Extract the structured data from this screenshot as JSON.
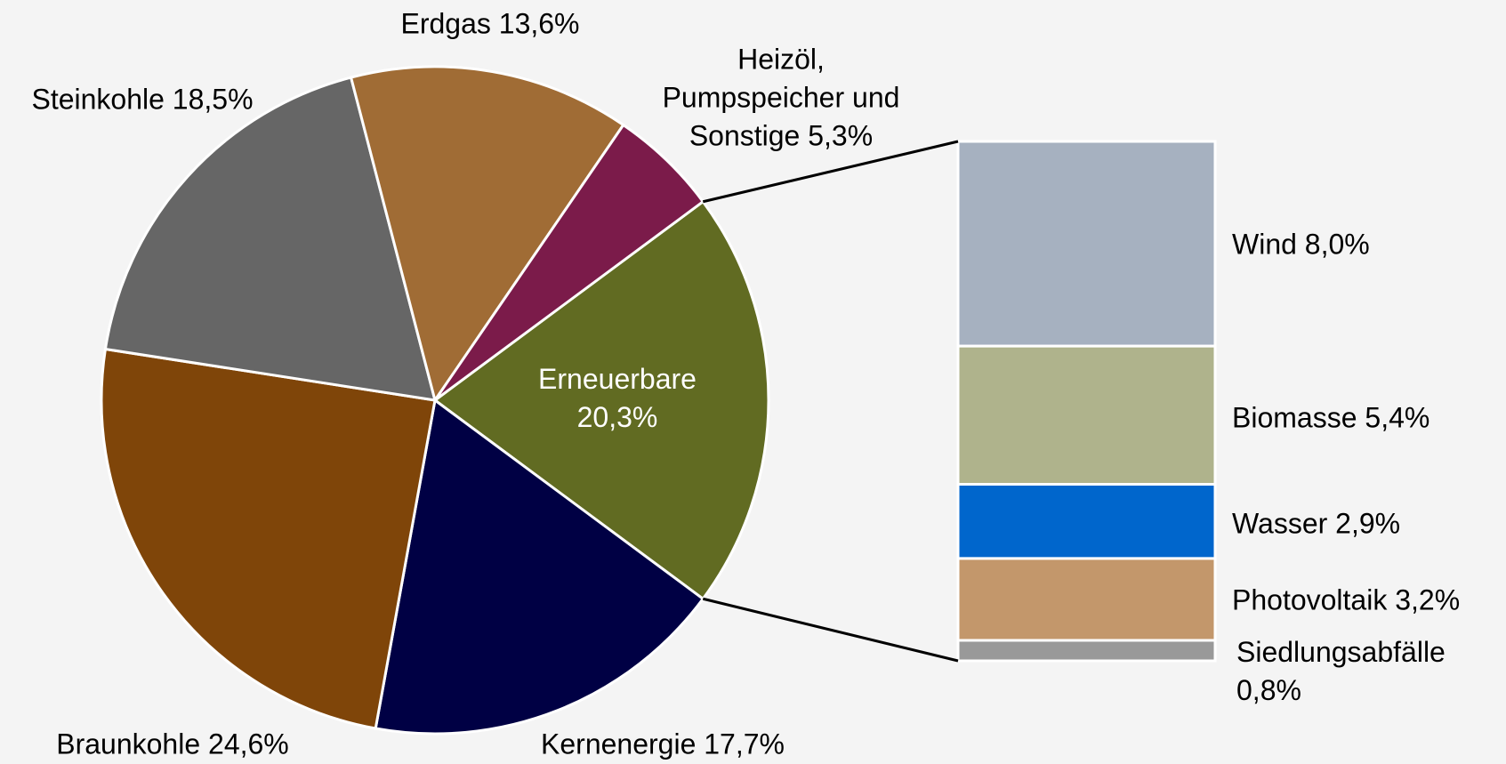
{
  "chart_data": {
    "type": "pie-of-bar",
    "categories": [
      "Erneuerbare",
      "Kernenergie",
      "Braunkohle",
      "Steinkohle",
      "Erdgas",
      "Heizöl,\nPumpspeicher und\nSonstige"
    ],
    "values": [
      20.3,
      17.7,
      24.6,
      18.5,
      13.6,
      5.3
    ],
    "value_labels": [
      "20,3%",
      "17,7%",
      "24,6%",
      "18,5%",
      "13,6%",
      "5,3%"
    ],
    "colors": [
      "#616b22",
      "#000044",
      "#7f4509",
      "#666666",
      "#a06c35",
      "#7b1b4a"
    ],
    "bar": {
      "categories": [
        "Wind",
        "Biomasse",
        "Wasser",
        "Photovoltaik",
        "Siedlungsabfälle"
      ],
      "values": [
        8.0,
        5.4,
        2.9,
        3.2,
        0.8
      ],
      "value_labels": [
        "8,0%",
        "5,4%",
        "2,9%",
        "3,2%",
        "0,8%"
      ],
      "colors": [
        "#a6b1c0",
        "#afb38c",
        "#0066cc",
        "#c3976b",
        "#999999"
      ]
    }
  }
}
